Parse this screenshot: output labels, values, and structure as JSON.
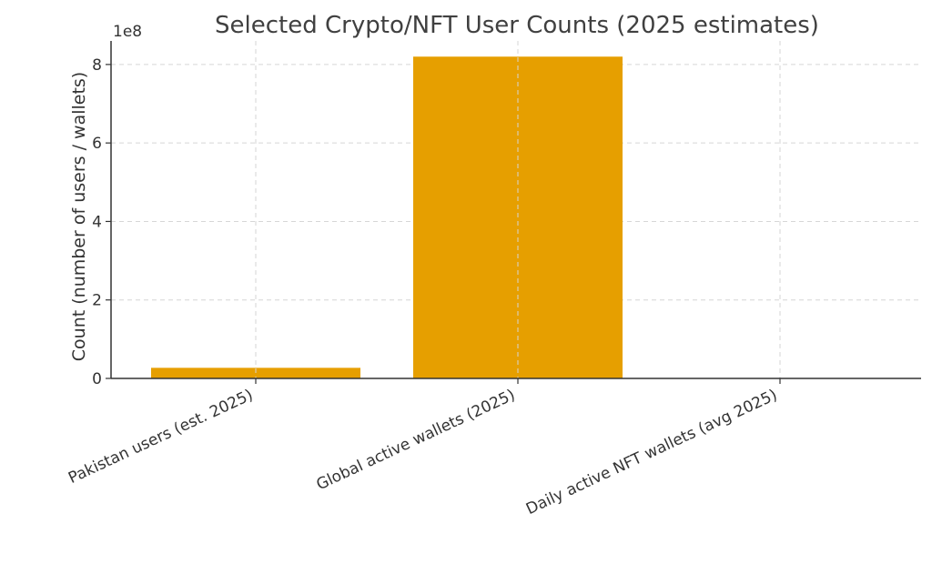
{
  "chart_data": {
    "type": "bar",
    "title": "Selected Crypto/NFT User Counts (2025 estimates)",
    "xlabel": "",
    "ylabel": "Count (number of users / wallets)",
    "y_offset_label": "1e8",
    "y_scale": 100000000,
    "categories": [
      "Pakistan users (est. 2025)",
      "Global active wallets (2025)",
      "Daily active NFT wallets (avg 2025)"
    ],
    "values": [
      27000000,
      820000000,
      400000
    ],
    "ylim": [
      0,
      860000000
    ],
    "yticks": [
      0,
      200000000,
      400000000,
      600000000,
      800000000
    ],
    "ytick_labels": [
      "0",
      "2",
      "4",
      "6",
      "8"
    ],
    "grid": true,
    "bar_color": "#E69F00"
  }
}
